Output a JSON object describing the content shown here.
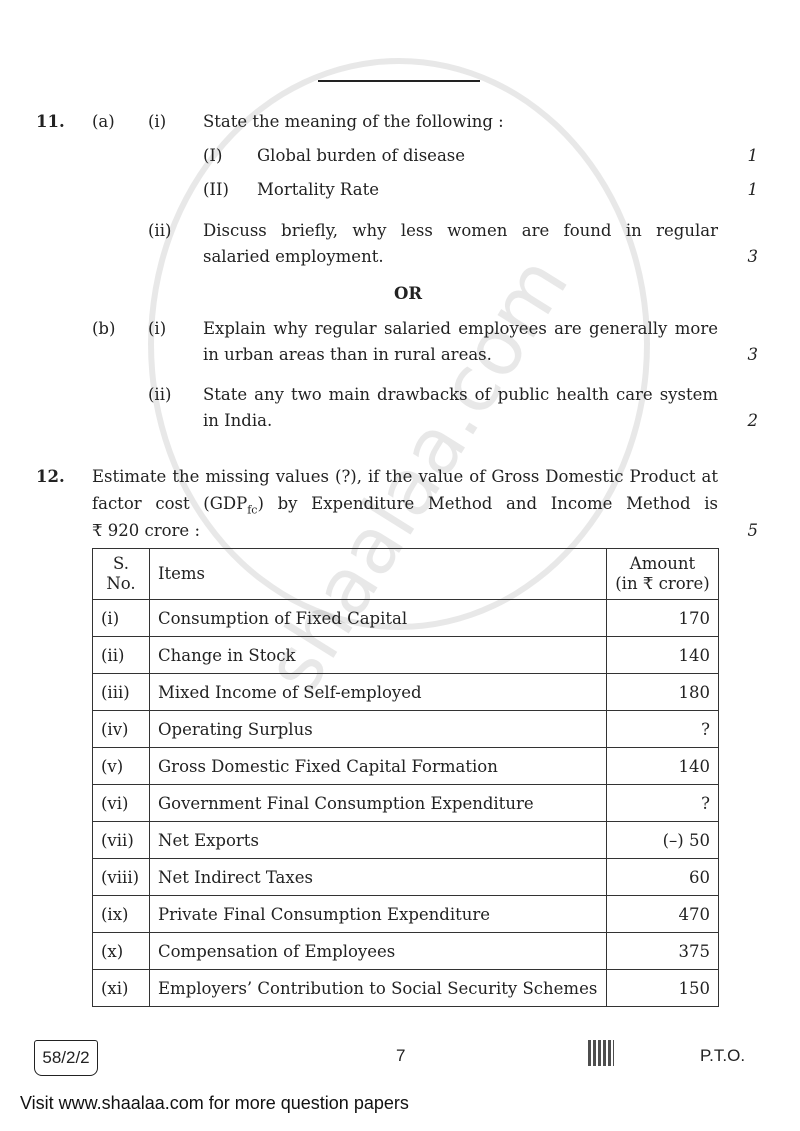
{
  "watermark": "shaalaa.com",
  "q11": {
    "number": "11.",
    "a": {
      "label": "(a)",
      "i": {
        "label": "(i)",
        "text": "State the meaning of the following :",
        "items": [
          {
            "label": "(I)",
            "text": "Global burden of disease",
            "marks": "1"
          },
          {
            "label": "(II)",
            "text": "Mortality Rate",
            "marks": "1"
          }
        ]
      },
      "ii": {
        "label": "(ii)",
        "line1": "Discuss briefly, why less women are found in regular",
        "line2": "salaried employment.",
        "marks": "3"
      }
    },
    "or": "OR",
    "b": {
      "label": "(b)",
      "i": {
        "label": "(i)",
        "line1": "Explain why regular salaried employees are generally more",
        "line2": "in urban areas than in rural areas.",
        "marks": "3"
      },
      "ii": {
        "label": "(ii)",
        "line1": "State any two main drawbacks of public health care system",
        "line2": "in India.",
        "marks": "2"
      }
    }
  },
  "q12": {
    "number": "12.",
    "line1": "Estimate the missing values (?), if the value of Gross Domestic Product at",
    "line2_pre": "factor cost (GDP",
    "line2_sub": "fc",
    "line2_post": ") by Expenditure Method and Income Method is",
    "line3": "₹ 920 crore :",
    "marks": "5",
    "table": {
      "headers": {
        "sno_1": "S.",
        "sno_2": "No.",
        "items": "Items",
        "amount_1": "Amount",
        "amount_2": "(in ₹ crore)"
      },
      "rows": [
        {
          "sno": "(i)",
          "item": "Consumption of Fixed Capital",
          "amount": "170"
        },
        {
          "sno": "(ii)",
          "item": "Change in Stock",
          "amount": "140"
        },
        {
          "sno": "(iii)",
          "item": "Mixed Income of Self-employed",
          "amount": "180"
        },
        {
          "sno": "(iv)",
          "item": "Operating Surplus",
          "amount": "?"
        },
        {
          "sno": "(v)",
          "item": "Gross Domestic Fixed Capital Formation",
          "amount": "140"
        },
        {
          "sno": "(vi)",
          "item": "Government Final Consumption Expenditure",
          "amount": "?"
        },
        {
          "sno": "(vii)",
          "item": "Net Exports",
          "amount": "(–) 50"
        },
        {
          "sno": "(viii)",
          "item": "Net Indirect Taxes",
          "amount": "60"
        },
        {
          "sno": "(ix)",
          "item": "Private Final Consumption Expenditure",
          "amount": "470"
        },
        {
          "sno": "(x)",
          "item": "Compensation of Employees",
          "amount": "375"
        },
        {
          "sno": "(xi)",
          "item": "Employers’ Contribution to Social Security Schemes",
          "amount": "150"
        }
      ]
    }
  },
  "footer": {
    "code": "58/2/2",
    "page": "7",
    "pto": "P.T.O.",
    "visit": "Visit www.shaalaa.com for more question papers"
  }
}
